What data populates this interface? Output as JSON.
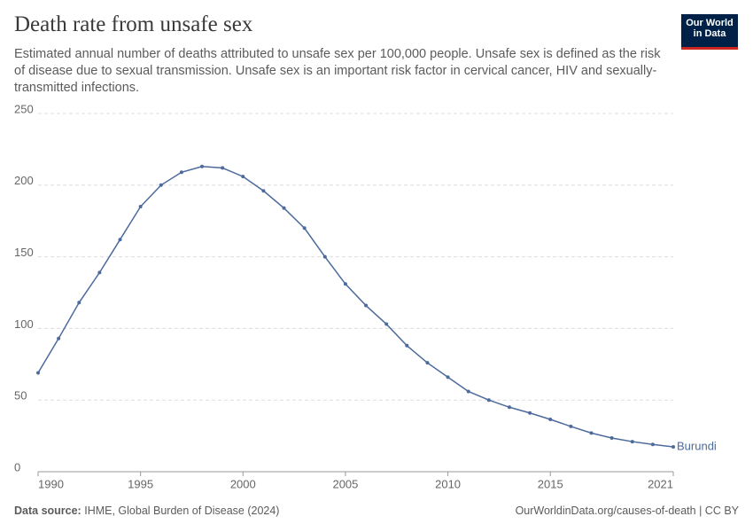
{
  "chart_data": {
    "type": "line",
    "title": "Death rate from unsafe sex",
    "subtitle": "Estimated annual number of deaths attributed to unsafe sex per 100,000 people. Unsafe sex is defined as the risk of disease due to sexual transmission. Unsafe sex is an important risk factor in cervical cancer, HIV and sexually-transmitted infections.",
    "logo": [
      "Our World",
      "in Data"
    ],
    "source_label": "Data source:",
    "source": "IHME, Global Burden of Disease (2024)",
    "footer_right": "OurWorldinData.org/causes-of-death | CC BY",
    "x": [
      1990,
      1991,
      1992,
      1993,
      1994,
      1995,
      1996,
      1997,
      1998,
      1999,
      2000,
      2001,
      2002,
      2003,
      2004,
      2005,
      2006,
      2007,
      2008,
      2009,
      2010,
      2011,
      2012,
      2013,
      2014,
      2015,
      2016,
      2017,
      2018,
      2019,
      2020,
      2021
    ],
    "series": [
      {
        "name": "Burundi",
        "color": "#4c6a9c",
        "values": [
          69,
          93,
          118,
          139,
          162,
          185,
          200,
          209,
          213,
          212,
          206,
          196,
          184,
          170,
          150,
          131,
          116,
          103,
          88,
          76,
          66,
          56,
          50,
          45,
          41,
          36.5,
          31.6,
          27,
          23.5,
          21,
          19,
          17.3
        ]
      }
    ],
    "xlim": [
      1990,
      2021
    ],
    "xticks": [
      1990,
      1995,
      2000,
      2005,
      2010,
      2015,
      2021
    ],
    "ylim": [
      0,
      250
    ],
    "yticks": [
      0,
      50,
      100,
      150,
      200,
      250
    ],
    "grid": true
  }
}
